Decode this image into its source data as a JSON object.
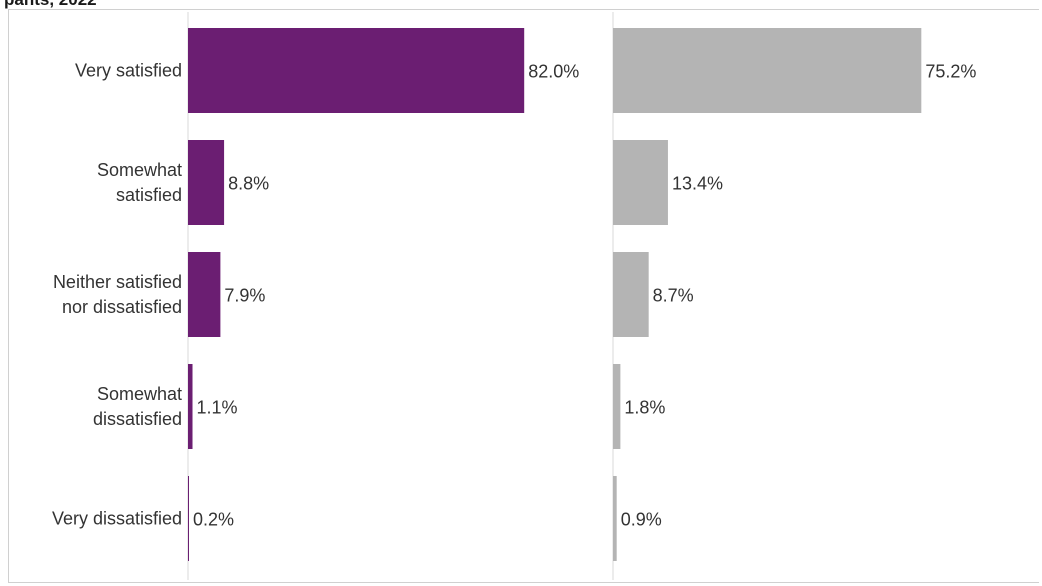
{
  "title_fragment": "pants, 2022",
  "chart_data": [
    {
      "type": "bar",
      "orientation": "horizontal",
      "categories": [
        "Very satisfied",
        "Somewhat satisfied",
        "Neither satisfied nor dissatisfied",
        "Somewhat dissatisfied",
        "Very dissatisfied"
      ],
      "series": [
        {
          "values": [
            82.0,
            8.8,
            7.9,
            1.1,
            0.2
          ]
        }
      ],
      "value_labels": [
        "82.0%",
        "8.8%",
        "7.9%",
        "1.1%",
        "0.2%"
      ],
      "xlim": [
        0,
        100
      ],
      "grid": false,
      "color": "#6b1e72"
    },
    {
      "type": "bar",
      "orientation": "horizontal",
      "categories": [
        "Very satisfied",
        "Somewhat satisfied",
        "Neither satisfied nor dissatisfied",
        "Somewhat dissatisfied",
        "Very dissatisfied"
      ],
      "series": [
        {
          "values": [
            75.2,
            13.4,
            8.7,
            1.8,
            0.9
          ]
        }
      ],
      "value_labels": [
        "75.2%",
        "13.4%",
        "8.7%",
        "1.8%",
        "0.9%"
      ],
      "xlim": [
        0,
        100
      ],
      "grid": false,
      "color": "#b4b4b4"
    }
  ],
  "category_lines": [
    [
      "Very satisfied"
    ],
    [
      "Somewhat",
      "satisfied"
    ],
    [
      "Neither satisfied",
      "nor dissatisfied"
    ],
    [
      "Somewhat",
      "dissatisfied"
    ],
    [
      "Very dissatisfied"
    ]
  ]
}
